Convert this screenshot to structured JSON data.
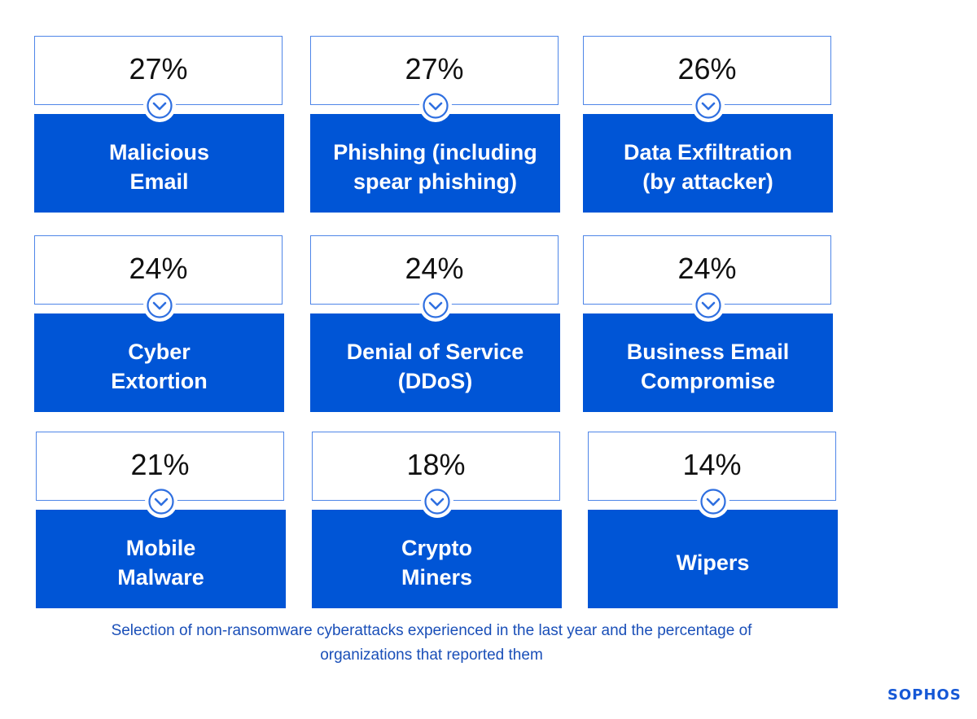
{
  "cards": [
    {
      "percent": "27%",
      "label": "Malicious\nEmail"
    },
    {
      "percent": "27%",
      "label": "Phishing (including\nspear phishing)"
    },
    {
      "percent": "26%",
      "label": "Data Exfiltration\n(by attacker)"
    },
    {
      "percent": "24%",
      "label": "Cyber\nExtortion"
    },
    {
      "percent": "24%",
      "label": "Denial of Service\n(DDoS)"
    },
    {
      "percent": "24%",
      "label": "Business Email\nCompromise"
    },
    {
      "percent": "21%",
      "label": "Mobile\nMalware"
    },
    {
      "percent": "18%",
      "label": "Crypto\nMiners"
    },
    {
      "percent": "14%",
      "label": "Wipers"
    }
  ],
  "caption": "Selection of non-ransomware cyberattacks experienced in the last year and the percentage of organizations that reported them",
  "logo": "SOPHOS",
  "colors": {
    "accent": "#0055d6",
    "border": "#4f86e8",
    "caption": "#1a4fb8"
  },
  "icon": "chevron-down-circle-icon"
}
